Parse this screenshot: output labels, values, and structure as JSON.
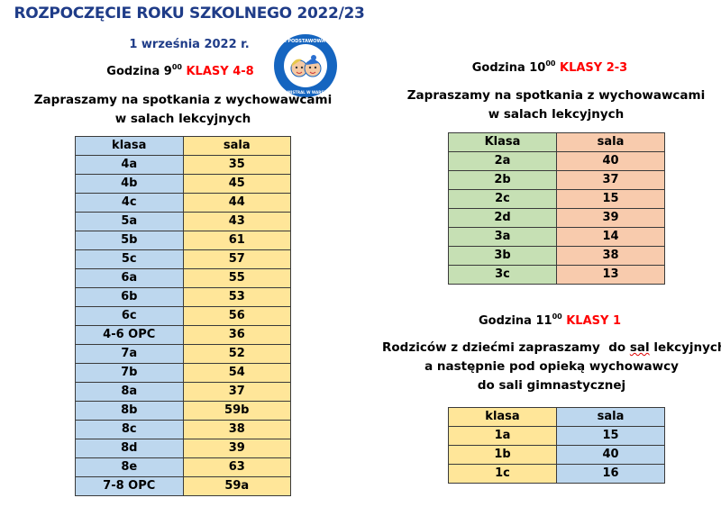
{
  "header": {
    "title": "ROZPOCZĘCIE ROKU SZKOLNEGO 2022/23",
    "date": "1 września 2022 r.",
    "logo": {
      "icon": "school-logo-icon",
      "top_text": "SZKOŁA PODSTAWOWA NR 264",
      "bottom_text": "IM. G. MISTRAL W WARSZAWIE",
      "colors": {
        "ring": "#1565c0",
        "inner": "#ffffff"
      }
    }
  },
  "colors": {
    "title": "#1f3c88",
    "accent_red": "#ff0000",
    "blue_cell": "#bdd7ee",
    "yellow_cell": "#ffe699",
    "green_cell": "#c6e0b4",
    "peach_cell": "#f8cbad"
  },
  "section_4_8": {
    "hour_label": "Godzina 9",
    "hour_sup": "00",
    "classes_label": "KLASY 4-8",
    "invite_line1": "Zapraszamy na spotkania z wychowawcami",
    "invite_line2": "w salach lekcyjnych",
    "table": {
      "headers": [
        "klasa",
        "sala"
      ],
      "rows": [
        [
          "4a",
          "35"
        ],
        [
          "4b",
          "45"
        ],
        [
          "4c",
          "44"
        ],
        [
          "5a",
          "43"
        ],
        [
          "5b",
          "61"
        ],
        [
          "5c",
          "57"
        ],
        [
          "6a",
          "55"
        ],
        [
          "6b",
          "53"
        ],
        [
          "6c",
          "56"
        ],
        [
          "4-6 OPC",
          "36"
        ],
        [
          "7a",
          "52"
        ],
        [
          "7b",
          "54"
        ],
        [
          "8a",
          "37"
        ],
        [
          "8b",
          "59b"
        ],
        [
          "8c",
          "38"
        ],
        [
          "8d",
          "39"
        ],
        [
          "8e",
          "63"
        ],
        [
          "7-8 OPC",
          "59a"
        ]
      ]
    }
  },
  "section_2_3": {
    "hour_label": "Godzina 10",
    "hour_sup": "00",
    "classes_label": "KLASY 2-3",
    "invite_line1": "Zapraszamy na spotkania z wychowawcami",
    "invite_line2": "w salach lekcyjnych",
    "table": {
      "headers": [
        "Klasa",
        "sala"
      ],
      "rows": [
        [
          "2a",
          "40"
        ],
        [
          "2b",
          "37"
        ],
        [
          "2c",
          "15"
        ],
        [
          "2d",
          "39"
        ],
        [
          "3a",
          "14"
        ],
        [
          "3b",
          "38"
        ],
        [
          "3c",
          "13"
        ]
      ]
    }
  },
  "section_1": {
    "hour_label": "Godzina 11",
    "hour_sup": "00",
    "classes_label": "KLASY 1",
    "line1_pre": "Rodziców z dziećmi zapraszamy  do ",
    "line1_wavy": "sal",
    "line1_post": " lekcyjnych,",
    "line2": "a następnie pod opieką wychowawcy",
    "line3": "do sali gimnastycznej",
    "table": {
      "headers": [
        "klasa",
        "sala"
      ],
      "rows": [
        [
          "1a",
          "15"
        ],
        [
          "1b",
          "40"
        ],
        [
          "1c",
          "16"
        ]
      ]
    }
  }
}
